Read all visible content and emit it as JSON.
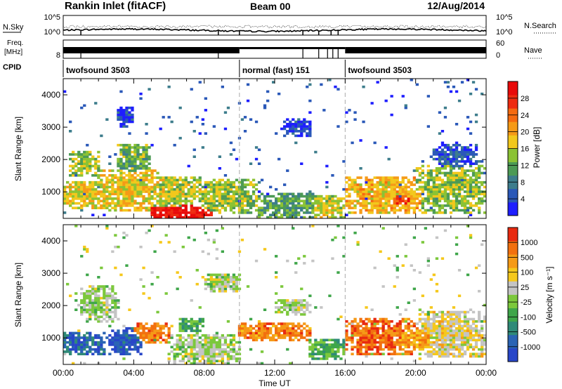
{
  "header": {
    "station": "Rankin Inlet (fitACF)",
    "beam": "Beam 00",
    "date": "12/Aug/2014"
  },
  "summary_panels": {
    "nsky": {
      "left_label": "N.Sky",
      "left_ticks": [
        "10^5",
        "10^0"
      ],
      "right_label": "N.Search",
      "right_ticks": [
        "10^5",
        "10^0"
      ]
    },
    "freq": {
      "left_label_1": "Freq.",
      "left_label_2": "[MHz]",
      "left_ticks": [
        "8"
      ],
      "right_label": "Nave",
      "right_ticks": [
        "60",
        "0"
      ]
    },
    "cpid": {
      "label": "CPID",
      "segments": [
        {
          "label": "twofsound 3503",
          "start_hour": 0.0,
          "end_hour": 10.0
        },
        {
          "label": "normal (fast) 151",
          "start_hour": 10.0,
          "end_hour": 16.0
        },
        {
          "label": "twofsound 3503",
          "start_hour": 16.0,
          "end_hour": 24.0
        }
      ]
    }
  },
  "chart_data": [
    {
      "type": "heatmap",
      "name": "power-panel",
      "ylabel": "Slant Range [km]",
      "y_ticks": [
        "1000",
        "2000",
        "3000",
        "4000"
      ],
      "y_tick_values": [
        1000,
        2000,
        3000,
        4000
      ],
      "ylim": [
        180,
        4500
      ],
      "xlim": [
        0,
        24
      ],
      "colorbar": {
        "title": "Power [dB]",
        "ticks": [
          "4",
          "8",
          "12",
          "16",
          "20",
          "24",
          "28"
        ],
        "colors": [
          "#1e1eff",
          "#2a58b8",
          "#3d7d8c",
          "#4c9a55",
          "#8bc234",
          "#f2c81c",
          "#f59a17",
          "#f56a10",
          "#ee2b10",
          "#e80a0a"
        ]
      },
      "blobs": [
        {
          "t0": 0.0,
          "t1": 2.5,
          "r0": 500,
          "r1": 1300,
          "v": 0.55
        },
        {
          "t0": 0.3,
          "t1": 2.0,
          "r0": 1500,
          "r1": 2300,
          "v": 0.45
        },
        {
          "t0": 2.0,
          "t1": 5.5,
          "r0": 400,
          "r1": 1700,
          "v": 0.55
        },
        {
          "t0": 3.0,
          "t1": 5.0,
          "r0": 1600,
          "r1": 2500,
          "v": 0.4
        },
        {
          "t0": 5.0,
          "t1": 8.5,
          "r0": 180,
          "r1": 600,
          "v": 0.95
        },
        {
          "t0": 4.5,
          "t1": 8.0,
          "r0": 500,
          "r1": 1500,
          "v": 0.5
        },
        {
          "t0": 7.5,
          "t1": 11.0,
          "r0": 300,
          "r1": 1400,
          "v": 0.45
        },
        {
          "t0": 11.0,
          "t1": 14.5,
          "r0": 200,
          "r1": 1000,
          "v": 0.35
        },
        {
          "t0": 14.0,
          "t1": 16.0,
          "r0": 200,
          "r1": 900,
          "v": 0.5
        },
        {
          "t0": 16.0,
          "t1": 20.5,
          "r0": 300,
          "r1": 1500,
          "v": 0.6
        },
        {
          "t0": 18.0,
          "t1": 20.0,
          "r0": 500,
          "r1": 1100,
          "v": 0.85
        },
        {
          "t0": 20.0,
          "t1": 24.0,
          "r0": 300,
          "r1": 1800,
          "v": 0.45
        },
        {
          "t0": 12.5,
          "t1": 14.0,
          "r0": 2700,
          "r1": 3300,
          "v": 0.1
        },
        {
          "t0": 3.0,
          "t1": 4.0,
          "r0": 3000,
          "r1": 3600,
          "v": 0.1
        },
        {
          "t0": 21.0,
          "t1": 23.5,
          "r0": 1800,
          "r1": 2500,
          "v": 0.15
        }
      ]
    },
    {
      "type": "heatmap",
      "name": "velocity-panel",
      "ylabel": "Slant Range [km]",
      "xlabel": "Time UT",
      "x_ticks": [
        "00:00",
        "04:00",
        "08:00",
        "12:00",
        "16:00",
        "20:00",
        "00:00"
      ],
      "x_tick_values": [
        0,
        4,
        8,
        12,
        16,
        20,
        24
      ],
      "y_ticks": [
        "1000",
        "2000",
        "3000",
        "4000"
      ],
      "y_tick_values": [
        1000,
        2000,
        3000,
        4000
      ],
      "ylim": [
        180,
        4500
      ],
      "xlim": [
        0,
        24
      ],
      "colorbar": {
        "title": "Velocity [m s⁻¹]",
        "ticks": [
          "1000",
          "500",
          "100",
          "25",
          "-25",
          "-100",
          "-500",
          "-1000"
        ],
        "colors": [
          "#2846c8",
          "#2a64b4",
          "#2f8a78",
          "#3fa64a",
          "#7cc83c",
          "#c4c4c4",
          "#f5c81c",
          "#f59a17",
          "#f2700f",
          "#e82a10"
        ]
      },
      "blobs": [
        {
          "t0": 0.0,
          "t1": 2.5,
          "r0": 500,
          "r1": 1200,
          "v": 0.15
        },
        {
          "t0": 1.0,
          "t1": 3.0,
          "r0": 1500,
          "r1": 2600,
          "v": 0.5
        },
        {
          "t0": 2.5,
          "t1": 4.5,
          "r0": 500,
          "r1": 1300,
          "v": 0.1
        },
        {
          "t0": 4.0,
          "t1": 6.0,
          "r0": 800,
          "r1": 1500,
          "v": 0.8
        },
        {
          "t0": 6.0,
          "t1": 10.0,
          "r0": 200,
          "r1": 1100,
          "v": 0.5
        },
        {
          "t0": 6.5,
          "t1": 8.0,
          "r0": 1200,
          "r1": 1600,
          "v": 0.35
        },
        {
          "t0": 10.0,
          "t1": 14.0,
          "r0": 900,
          "r1": 1500,
          "v": 0.8
        },
        {
          "t0": 12.0,
          "t1": 14.0,
          "r0": 1700,
          "r1": 2200,
          "v": 0.5
        },
        {
          "t0": 14.0,
          "t1": 16.0,
          "r0": 300,
          "r1": 1000,
          "v": 0.35
        },
        {
          "t0": 16.0,
          "t1": 20.0,
          "r0": 500,
          "r1": 1600,
          "v": 0.85
        },
        {
          "t0": 18.5,
          "t1": 21.5,
          "r0": 600,
          "r1": 1300,
          "v": 0.75
        },
        {
          "t0": 20.0,
          "t1": 24.0,
          "r0": 400,
          "r1": 1800,
          "v": 0.6
        },
        {
          "t0": 8.0,
          "t1": 10.0,
          "r0": 2400,
          "r1": 3000,
          "v": 0.5
        }
      ]
    }
  ]
}
